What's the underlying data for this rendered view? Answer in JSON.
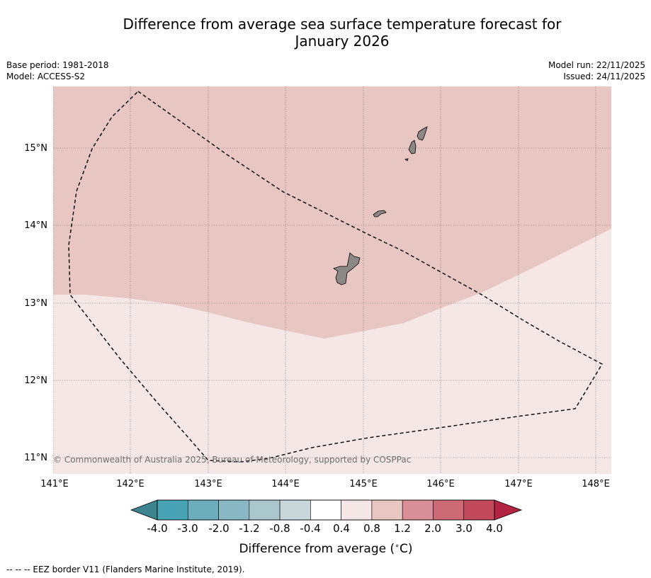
{
  "title": "Difference from average sea surface temperature forecast for January 2026",
  "title_lines": [
    "Difference from average sea surface temperature forecast for",
    "January 2026"
  ],
  "meta": {
    "base_period": "Base period: 1981-2018",
    "model": "Model: ACCESS-S2",
    "model_run": "Model run: 22/11/2025",
    "issued": "Issued: 24/11/2025"
  },
  "map": {
    "lon_ticks": [
      "141°E",
      "142°E",
      "143°E",
      "144°E",
      "145°E",
      "146°E",
      "147°E",
      "148°E"
    ],
    "lat_ticks": [
      "15°N",
      "14°N",
      "13°N",
      "12°N",
      "11°N"
    ],
    "copyright": "© Commonwealth of Australia 2025, Bureau of Meteorology, supported by COSPPac",
    "colors": {
      "band_0_4_0_8": "#f4e7e6",
      "band_0_8_1_2": "#e8c6c2",
      "land": "#8c8886",
      "eez_border": "#000000"
    }
  },
  "colorbar": {
    "labels": [
      "-4.0",
      "-3.0",
      "-2.0",
      "-1.2",
      "-0.8",
      "-0.4",
      "0.4",
      "0.8",
      "1.2",
      "2.0",
      "3.0",
      "4.0"
    ],
    "colors": [
      "#47a3b5",
      "#6daebd",
      "#8ab8c4",
      "#a9c7cc",
      "#c8d8da",
      "#ffffff",
      "#f4e7e6",
      "#e8c6c2",
      "#d88f98",
      "#cc6a76",
      "#c24a5c"
    ],
    "under_color": "#3e8490",
    "over_color": "#b22442",
    "title": "Difference from average (°C)",
    "title_main": "Difference from average (",
    "title_unit": "∘",
    "title_end": "C)"
  },
  "footer": "--  --  -- EEZ border V11 (Flanders Marine Institute, 2019)."
}
